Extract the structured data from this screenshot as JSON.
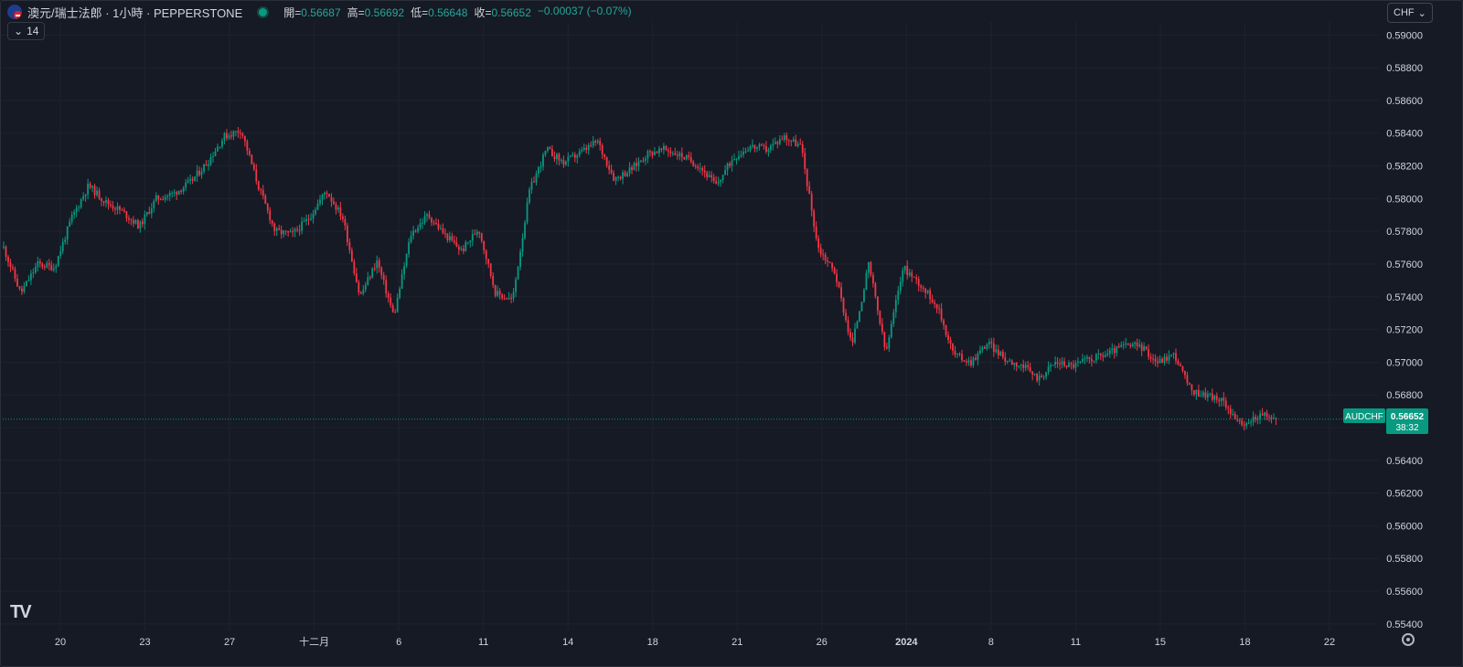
{
  "header": {
    "symbol_title": "澳元/瑞士法郎 · 1小時 · PEPPERSTONE",
    "ohlc": {
      "open_label": "開=",
      "open": "0.56687",
      "high_label": "高=",
      "high": "0.56692",
      "low_label": "低=",
      "low": "0.56648",
      "close_label": "收=",
      "close": "0.56652",
      "change": "−0.00037 (−0.07%)"
    },
    "indicator_count": "14"
  },
  "currency_button": {
    "label": "CHF"
  },
  "last_price_tag": {
    "symbol": "AUDCHF",
    "price": "0.56652",
    "countdown": "38:32"
  },
  "logo_text": "TV",
  "icons": {
    "settings": "gear-icon",
    "chevron": "chevron-down-icon"
  },
  "colors": {
    "up": "#089981",
    "down": "#f23645",
    "background": "#161a25",
    "grid": "#1f2330",
    "text": "#d1d4dc"
  },
  "chart_data": {
    "type": "candlestick",
    "symbol": "AUDCHF",
    "interval": "1h",
    "y_ticks": [
      "0.59000",
      "0.58800",
      "0.58600",
      "0.58400",
      "0.58200",
      "0.58000",
      "0.57800",
      "0.57600",
      "0.57400",
      "0.57200",
      "0.57000",
      "0.56800",
      "0.56600",
      "0.56400",
      "0.56200",
      "0.56000",
      "0.55800",
      "0.55600",
      "0.55400"
    ],
    "ylim": [
      0.5536,
      0.5908
    ],
    "x_ticks": [
      "20",
      "23",
      "27",
      "十二月",
      "6",
      "11",
      "14",
      "18",
      "21",
      "26",
      "2024",
      "8",
      "11",
      "15",
      "18",
      "22"
    ],
    "last_price": 0.56652,
    "close_path": [
      [
        0,
        0.577
      ],
      [
        1,
        0.5742
      ],
      [
        2,
        0.576
      ],
      [
        3,
        0.5758
      ],
      [
        4,
        0.5788
      ],
      [
        5,
        0.5808
      ],
      [
        6,
        0.5798
      ],
      [
        7,
        0.5792
      ],
      [
        8,
        0.5783
      ],
      [
        9,
        0.58
      ],
      [
        10,
        0.5803
      ],
      [
        11,
        0.581
      ],
      [
        12,
        0.5822
      ],
      [
        13,
        0.5838
      ],
      [
        14,
        0.5842
      ],
      [
        15,
        0.5808
      ],
      [
        16,
        0.578
      ],
      [
        17,
        0.5778
      ],
      [
        18,
        0.5788
      ],
      [
        19,
        0.5805
      ],
      [
        20,
        0.5788
      ],
      [
        21,
        0.574
      ],
      [
        22,
        0.5762
      ],
      [
        23,
        0.5728
      ],
      [
        24,
        0.5778
      ],
      [
        25,
        0.579
      ],
      [
        26,
        0.5778
      ],
      [
        27,
        0.5768
      ],
      [
        28,
        0.5782
      ],
      [
        29,
        0.5742
      ],
      [
        30,
        0.5738
      ],
      [
        31,
        0.5805
      ],
      [
        32,
        0.583
      ],
      [
        33,
        0.5822
      ],
      [
        34,
        0.5828
      ],
      [
        35,
        0.5835
      ],
      [
        36,
        0.5812
      ],
      [
        37,
        0.5818
      ],
      [
        38,
        0.5828
      ],
      [
        39,
        0.583
      ],
      [
        40,
        0.5826
      ],
      [
        41,
        0.582
      ],
      [
        42,
        0.5808
      ],
      [
        43,
        0.5825
      ],
      [
        44,
        0.5832
      ],
      [
        45,
        0.583
      ],
      [
        46,
        0.5838
      ],
      [
        47,
        0.5832
      ],
      [
        48,
        0.577
      ],
      [
        49,
        0.5755
      ],
      [
        50,
        0.571
      ],
      [
        51,
        0.576
      ],
      [
        52,
        0.5705
      ],
      [
        53,
        0.5758
      ],
      [
        54,
        0.5748
      ],
      [
        55,
        0.5735
      ],
      [
        56,
        0.5705
      ],
      [
        57,
        0.57
      ],
      [
        58,
        0.5712
      ],
      [
        59,
        0.5702
      ],
      [
        60,
        0.5698
      ],
      [
        61,
        0.569
      ],
      [
        62,
        0.57
      ],
      [
        63,
        0.5698
      ],
      [
        64,
        0.5702
      ],
      [
        65,
        0.5705
      ],
      [
        66,
        0.571
      ],
      [
        67,
        0.571
      ],
      [
        68,
        0.57
      ],
      [
        69,
        0.5705
      ],
      [
        70,
        0.5682
      ],
      [
        71,
        0.568
      ],
      [
        72,
        0.5675
      ],
      [
        73,
        0.566
      ],
      [
        74,
        0.5668
      ],
      [
        75,
        0.5665
      ]
    ]
  }
}
